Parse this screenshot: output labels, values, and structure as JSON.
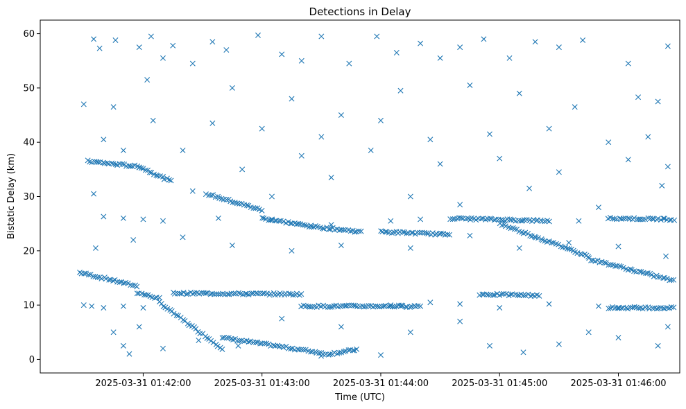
{
  "chart_data": {
    "type": "scatter",
    "title": "Detections in Delay",
    "xlabel": "Time (UTC)",
    "ylabel": "Bistatic Delay (km)",
    "marker": "x",
    "color": "#1f77b4",
    "grid": false,
    "x_ticks": [
      {
        "time": "01:42:00",
        "label": "2025-03-31 01:42:00"
      },
      {
        "time": "01:43:00",
        "label": "2025-03-31 01:43:00"
      },
      {
        "time": "01:44:00",
        "label": "2025-03-31 01:44:00"
      },
      {
        "time": "01:45:00",
        "label": "2025-03-31 01:45:00"
      },
      {
        "time": "01:46:00",
        "label": "2025-03-31 01:46:00"
      }
    ],
    "y_ticks": [
      0,
      10,
      20,
      30,
      40,
      50,
      60
    ],
    "xlim": [
      "2025-03-31 01:41:08",
      "2025-03-31 01:46:31"
    ],
    "ylim": [
      -2.5,
      62.5
    ],
    "trend_segments": [
      {
        "start_time": "01:41:28",
        "end_time": "01:41:57",
        "start_delay": 16,
        "end_delay": 13.5
      },
      {
        "start_time": "01:41:57",
        "end_time": "01:42:08",
        "start_delay": 12.3,
        "end_delay": 11.2
      },
      {
        "start_time": "01:42:08",
        "end_time": "01:42:40",
        "start_delay": 10.5,
        "end_delay": 2.0
      },
      {
        "start_time": "01:42:40",
        "end_time": "01:43:30",
        "start_delay": 4.0,
        "end_delay": 1.2
      },
      {
        "start_time": "01:43:30",
        "end_time": "01:43:48",
        "start_delay": 0.8,
        "end_delay": 1.8
      },
      {
        "start_time": "01:41:32",
        "end_time": "01:41:58",
        "start_delay": 36.5,
        "end_delay": 35.5
      },
      {
        "start_time": "01:41:58",
        "end_time": "01:42:14",
        "start_delay": 35.5,
        "end_delay": 32.8
      },
      {
        "start_time": "01:42:32",
        "end_time": "01:43:00",
        "start_delay": 30.5,
        "end_delay": 27.5
      },
      {
        "start_time": "01:43:00",
        "end_time": "01:43:25",
        "start_delay": 26,
        "end_delay": 24.5
      },
      {
        "start_time": "01:43:25",
        "end_time": "01:43:50",
        "start_delay": 24.5,
        "end_delay": 23.5
      },
      {
        "start_time": "01:42:15",
        "end_time": "01:43:20",
        "start_delay": 12.2,
        "end_delay": 12.0
      },
      {
        "start_time": "01:43:20",
        "end_time": "01:44:20",
        "start_delay": 9.8,
        "end_delay": 9.8
      },
      {
        "start_time": "01:44:50",
        "end_time": "01:45:20",
        "start_delay": 12.0,
        "end_delay": 11.8
      },
      {
        "start_time": "01:44:00",
        "end_time": "01:44:35",
        "start_delay": 23.5,
        "end_delay": 23.0
      },
      {
        "start_time": "01:44:35",
        "end_time": "01:45:25",
        "start_delay": 26.0,
        "end_delay": 25.5
      },
      {
        "start_time": "01:45:00",
        "end_time": "01:45:45",
        "start_delay": 25.0,
        "end_delay": 19.0
      },
      {
        "start_time": "01:45:45",
        "end_time": "01:46:28",
        "start_delay": 18.5,
        "end_delay": 14.5
      },
      {
        "start_time": "01:45:55",
        "end_time": "01:46:28",
        "start_delay": 26.0,
        "end_delay": 25.8
      },
      {
        "start_time": "01:45:55",
        "end_time": "01:46:28",
        "start_delay": 9.5,
        "end_delay": 9.5
      }
    ],
    "scatter_points": [
      [
        "01:41:35",
        59
      ],
      [
        "01:41:38",
        57.3
      ],
      [
        "01:41:46",
        58.8
      ],
      [
        "01:41:58",
        57.5
      ],
      [
        "01:42:04",
        59.5
      ],
      [
        "01:42:10",
        55.5
      ],
      [
        "01:42:15",
        57.8
      ],
      [
        "01:42:25",
        54.5
      ],
      [
        "01:42:35",
        58.5
      ],
      [
        "01:42:42",
        57
      ],
      [
        "01:42:58",
        59.7
      ],
      [
        "01:43:10",
        56.2
      ],
      [
        "01:43:20",
        55
      ],
      [
        "01:43:30",
        59.5
      ],
      [
        "01:43:44",
        54.5
      ],
      [
        "01:43:58",
        59.5
      ],
      [
        "01:44:08",
        56.5
      ],
      [
        "01:44:20",
        58.2
      ],
      [
        "01:44:30",
        55.5
      ],
      [
        "01:44:40",
        57.5
      ],
      [
        "01:44:52",
        59
      ],
      [
        "01:45:05",
        55.5
      ],
      [
        "01:45:18",
        58.5
      ],
      [
        "01:45:30",
        57.5
      ],
      [
        "01:45:42",
        58.8
      ],
      [
        "01:46:05",
        54.5
      ],
      [
        "01:46:25",
        57.7
      ],
      [
        "01:41:30",
        47
      ],
      [
        "01:41:45",
        46.5
      ],
      [
        "01:42:02",
        51.5
      ],
      [
        "01:42:45",
        50
      ],
      [
        "01:43:15",
        48
      ],
      [
        "01:43:40",
        45
      ],
      [
        "01:44:10",
        49.5
      ],
      [
        "01:44:45",
        50.5
      ],
      [
        "01:45:10",
        49
      ],
      [
        "01:45:38",
        46.5
      ],
      [
        "01:46:10",
        48.3
      ],
      [
        "01:46:20",
        47.5
      ],
      [
        "01:41:40",
        40.5
      ],
      [
        "01:42:05",
        44
      ],
      [
        "01:42:35",
        43.5
      ],
      [
        "01:43:00",
        42.5
      ],
      [
        "01:43:30",
        41
      ],
      [
        "01:44:00",
        44
      ],
      [
        "01:44:25",
        40.5
      ],
      [
        "01:44:55",
        41.5
      ],
      [
        "01:45:25",
        42.5
      ],
      [
        "01:45:55",
        40
      ],
      [
        "01:46:15",
        41
      ],
      [
        "01:41:50",
        38.5
      ],
      [
        "01:42:20",
        38.5
      ],
      [
        "01:42:50",
        35
      ],
      [
        "01:43:20",
        37.5
      ],
      [
        "01:43:55",
        38.5
      ],
      [
        "01:44:30",
        36
      ],
      [
        "01:45:00",
        37
      ],
      [
        "01:45:30",
        34.5
      ],
      [
        "01:46:05",
        36.8
      ],
      [
        "01:46:25",
        35.5
      ],
      [
        "01:41:35",
        30.5
      ],
      [
        "01:42:25",
        31
      ],
      [
        "01:43:05",
        30
      ],
      [
        "01:43:35",
        33.5
      ],
      [
        "01:44:15",
        30
      ],
      [
        "01:44:40",
        28.5
      ],
      [
        "01:45:15",
        31.5
      ],
      [
        "01:45:50",
        28
      ],
      [
        "01:46:22",
        32
      ],
      [
        "01:41:40",
        26.3
      ],
      [
        "01:41:50",
        26
      ],
      [
        "01:42:00",
        25.8
      ],
      [
        "01:42:10",
        25.5
      ],
      [
        "01:42:38",
        26
      ],
      [
        "01:43:05",
        25.8
      ],
      [
        "01:43:35",
        24.8
      ],
      [
        "01:44:05",
        25.5
      ],
      [
        "01:44:20",
        25.8
      ],
      [
        "01:45:40",
        25.5
      ],
      [
        "01:41:36",
        20.5
      ],
      [
        "01:41:55",
        22
      ],
      [
        "01:42:20",
        22.5
      ],
      [
        "01:42:45",
        21
      ],
      [
        "01:43:15",
        20
      ],
      [
        "01:43:40",
        21
      ],
      [
        "01:44:15",
        20.5
      ],
      [
        "01:44:45",
        22.8
      ],
      [
        "01:45:10",
        20.5
      ],
      [
        "01:45:35",
        21.5
      ],
      [
        "01:46:00",
        20.8
      ],
      [
        "01:46:24",
        19
      ],
      [
        "01:41:30",
        10
      ],
      [
        "01:41:34",
        9.8
      ],
      [
        "01:41:40",
        9.5
      ],
      [
        "01:41:50",
        9.8
      ],
      [
        "01:42:00",
        9.5
      ],
      [
        "01:44:05",
        10
      ],
      [
        "01:44:10",
        9.8
      ],
      [
        "01:44:25",
        10.5
      ],
      [
        "01:44:40",
        10.2
      ],
      [
        "01:45:00",
        9.5
      ],
      [
        "01:45:25",
        10.2
      ],
      [
        "01:45:50",
        9.8
      ],
      [
        "01:46:00",
        9.5
      ],
      [
        "01:41:45",
        5
      ],
      [
        "01:41:50",
        2.5
      ],
      [
        "01:41:53",
        1
      ],
      [
        "01:41:58",
        6
      ],
      [
        "01:42:10",
        2
      ],
      [
        "01:42:28",
        3.5
      ],
      [
        "01:42:48",
        2.5
      ],
      [
        "01:43:10",
        7.5
      ],
      [
        "01:43:40",
        6
      ],
      [
        "01:44:00",
        0.8
      ],
      [
        "01:44:15",
        5
      ],
      [
        "01:44:40",
        7
      ],
      [
        "01:44:55",
        2.5
      ],
      [
        "01:45:12",
        1.3
      ],
      [
        "01:45:30",
        2.8
      ],
      [
        "01:45:45",
        5
      ],
      [
        "01:46:00",
        4
      ],
      [
        "01:46:20",
        2.5
      ],
      [
        "01:46:25",
        6
      ]
    ]
  }
}
